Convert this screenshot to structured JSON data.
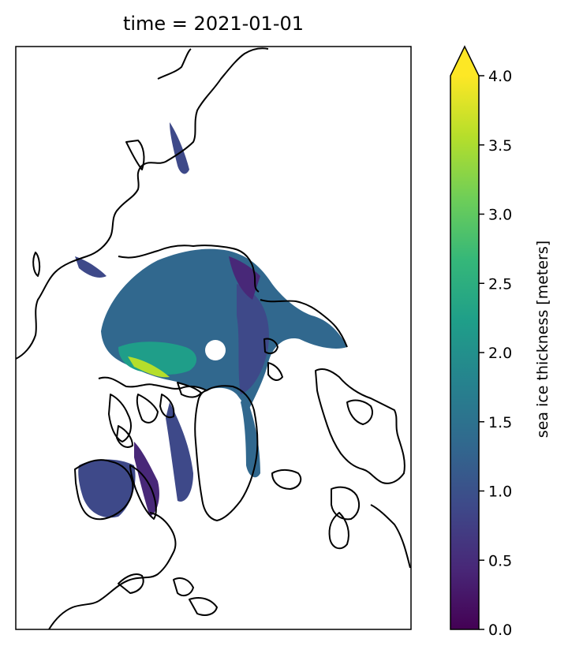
{
  "title": "time = 2021-01-01",
  "colorbar": {
    "label": "sea ice thickness [meters]",
    "ticks": [
      "0.0",
      "0.5",
      "1.0",
      "1.5",
      "2.0",
      "2.5",
      "3.0",
      "3.5",
      "4.0"
    ],
    "min": 0.0,
    "max": 4.0,
    "extend": "max",
    "colormap": "viridis",
    "colors": [
      "#440154",
      "#482878",
      "#3e4989",
      "#31688e",
      "#26828e",
      "#1f9e89",
      "#35b779",
      "#6ece58",
      "#b5de2b",
      "#fde725"
    ]
  },
  "map": {
    "projection": "north-polar-stereographic",
    "coastline_color": "#000000",
    "pole_hole": "white"
  }
}
